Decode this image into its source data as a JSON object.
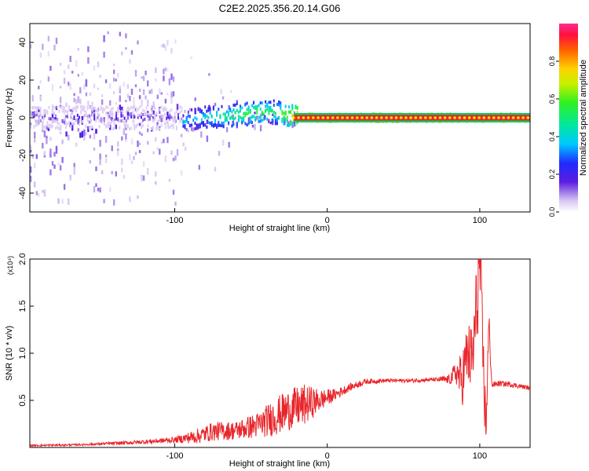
{
  "title": "C2E2.2025.356.20.14.G06",
  "colors": {
    "line": "#e8252a",
    "axis": "#000000",
    "band": "#e8252a"
  },
  "chart_data": [
    {
      "type": "heatmap",
      "title": "C2E2.2025.356.20.14.G06",
      "xlabel": "Height of straight line (km)",
      "ylabel": "Frequency (Hz)",
      "xlim": [
        -195,
        133
      ],
      "ylim": [
        -50,
        50
      ],
      "x_ticks": [
        -100,
        0,
        100
      ],
      "x_tick_labels": [
        "-100",
        "0",
        "100"
      ],
      "y_ticks": [
        -40,
        -20,
        0,
        20,
        40
      ],
      "y_tick_labels": [
        "-40",
        "-20",
        "0",
        "20",
        "40"
      ],
      "colorbar": {
        "label": "Normalized spectral amplitude",
        "range": [
          0,
          1
        ],
        "ticks": [
          0.0,
          0.2,
          0.4,
          0.6,
          0.8
        ],
        "tick_labels": [
          "0.0",
          "0.2",
          "0.4",
          "0.6",
          "0.8"
        ]
      },
      "ridge": {
        "description": "dominant frequency line",
        "x": [
          -95,
          -85,
          -75,
          -65,
          -55,
          -45,
          -35,
          -25,
          -15,
          0,
          25,
          50,
          80,
          90,
          100,
          133
        ],
        "frequency": [
          -2,
          0,
          0,
          1,
          2,
          3,
          3,
          1,
          0,
          0,
          0,
          0,
          0,
          0,
          0,
          0
        ],
        "amplitude": [
          0.4,
          0.45,
          0.5,
          0.55,
          0.6,
          0.6,
          0.55,
          0.7,
          0.9,
          0.95,
          0.95,
          0.95,
          0.95,
          0.9,
          0.95,
          0.95
        ]
      }
    },
    {
      "type": "line",
      "xlabel": "Height of straight line (km)",
      "ylabel": "SNR (10 * v/v)",
      "y_scale_label": "(x10⁴)",
      "xlim": [
        -195,
        133
      ],
      "ylim": [
        0,
        2.0
      ],
      "x_ticks": [
        -100,
        0,
        100
      ],
      "x_tick_labels": [
        "-100",
        "0",
        "100"
      ],
      "y_ticks": [
        0.5,
        1.0,
        1.5,
        2.0
      ],
      "y_tick_labels": [
        "0.5",
        "1.0",
        "1.5",
        "2.0"
      ],
      "series": [
        {
          "name": "SNR",
          "x": [
            -195,
            -160,
            -130,
            -100,
            -85,
            -75,
            -60,
            -45,
            -35,
            -25,
            -15,
            -5,
            5,
            15,
            25,
            40,
            55,
            70,
            80,
            85,
            88,
            92,
            95,
            98,
            100,
            102,
            104,
            106,
            108,
            112,
            120,
            133
          ],
          "y": [
            0.02,
            0.03,
            0.05,
            0.08,
            0.12,
            0.17,
            0.18,
            0.24,
            0.32,
            0.4,
            0.45,
            0.5,
            0.56,
            0.64,
            0.7,
            0.71,
            0.71,
            0.72,
            0.72,
            0.8,
            0.7,
            1.0,
            0.9,
            1.5,
            2.0,
            1.0,
            0.2,
            1.3,
            0.66,
            0.68,
            0.67,
            0.63
          ],
          "noise": [
            0.01,
            0.01,
            0.02,
            0.03,
            0.08,
            0.1,
            0.1,
            0.14,
            0.2,
            0.22,
            0.22,
            0.12,
            0.06,
            0.04,
            0.03,
            0.02,
            0.02,
            0.02,
            0.05,
            0.15,
            0.3,
            0.35,
            0.4,
            0.5,
            0.5,
            0.4,
            0.3,
            0.2,
            0.03,
            0.03,
            0.03,
            0.02
          ]
        }
      ]
    }
  ]
}
